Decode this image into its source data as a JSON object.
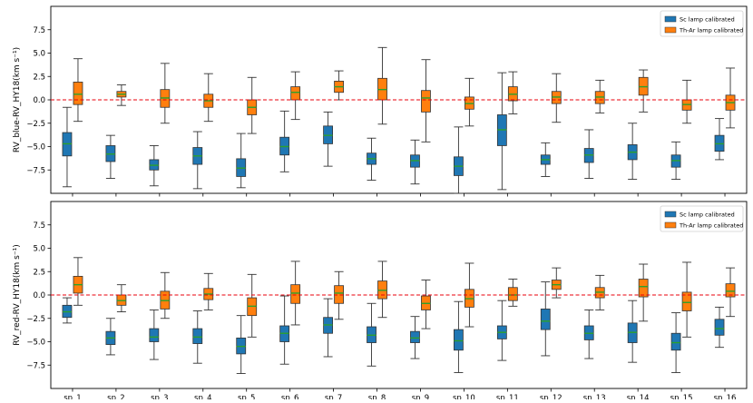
{
  "chart_data": [
    {
      "type": "boxplot",
      "ylabel": "RV_blue-RV_HY18(km s⁻¹)",
      "ylim": [
        -10,
        10
      ],
      "yticks": [
        -7.5,
        -5.0,
        -2.5,
        0.0,
        2.5,
        5.0,
        7.5
      ],
      "ytick_labels": [
        "−7.5",
        "−5.0",
        "−2.5",
        "0.0",
        "2.5",
        "5.0",
        "7.5"
      ],
      "reference_line": 0.0,
      "legend": {
        "placement": "top-right",
        "entries": [
          "Sc lamp calibrated",
          "Th-Ar lamp calibrated"
        ]
      },
      "series": [
        {
          "name": "Sc lamp calibrated",
          "color": "#1f77b4",
          "boxes": [
            {
              "low": -9.3,
              "q1": -6.0,
              "median": -4.7,
              "q3": -3.5,
              "high": -0.8
            },
            {
              "low": -8.4,
              "q1": -6.6,
              "median": -5.8,
              "q3": -4.9,
              "high": -3.8
            },
            {
              "low": -9.2,
              "q1": -7.5,
              "median": -7.0,
              "q3": -6.4,
              "high": -4.9
            },
            {
              "low": -9.5,
              "q1": -6.9,
              "median": -6.0,
              "q3": -5.1,
              "high": -3.4
            },
            {
              "low": -9.4,
              "q1": -8.2,
              "median": -7.3,
              "q3": -6.3,
              "high": -3.6
            },
            {
              "low": -7.7,
              "q1": -5.9,
              "median": -5.0,
              "q3": -4.0,
              "high": -1.2
            },
            {
              "low": -7.1,
              "q1": -4.7,
              "median": -3.8,
              "q3": -2.8,
              "high": -1.3
            },
            {
              "low": -8.6,
              "q1": -6.9,
              "median": -6.3,
              "q3": -5.7,
              "high": -4.1
            },
            {
              "low": -9.0,
              "q1": -7.2,
              "median": -6.5,
              "q3": -5.9,
              "high": -4.3
            },
            {
              "low": -10.0,
              "q1": -8.1,
              "median": -7.1,
              "q3": -6.1,
              "high": -2.9
            },
            {
              "low": -9.6,
              "q1": -4.9,
              "median": -3.2,
              "q3": -1.6,
              "high": 2.9
            },
            {
              "low": -8.2,
              "q1": -6.9,
              "median": -6.4,
              "q3": -5.9,
              "high": -4.6
            },
            {
              "low": -8.4,
              "q1": -6.7,
              "median": -5.9,
              "q3": -5.2,
              "high": -3.2
            },
            {
              "low": -8.5,
              "q1": -6.4,
              "median": -5.6,
              "q3": -4.8,
              "high": -2.5
            },
            {
              "low": -8.5,
              "q1": -7.2,
              "median": -6.5,
              "q3": -5.9,
              "high": -4.5
            },
            {
              "low": -6.4,
              "q1": -5.5,
              "median": -4.7,
              "q3": -3.8,
              "high": -2.0
            }
          ]
        },
        {
          "name": "Th-Ar lamp calibrated",
          "color": "#ff7f0e",
          "boxes": [
            {
              "low": -2.3,
              "q1": -0.5,
              "median": 0.6,
              "q3": 1.9,
              "high": 4.4
            },
            {
              "low": -0.6,
              "q1": 0.3,
              "median": 0.6,
              "q3": 0.9,
              "high": 1.6
            },
            {
              "low": -2.5,
              "q1": -0.8,
              "median": 0.2,
              "q3": 1.1,
              "high": 3.9
            },
            {
              "low": -2.3,
              "q1": -0.8,
              "median": -0.1,
              "q3": 0.6,
              "high": 2.8
            },
            {
              "low": -3.6,
              "q1": -1.6,
              "median": -0.8,
              "q3": 0.0,
              "high": 2.4
            },
            {
              "low": -2.1,
              "q1": 0.0,
              "median": 0.8,
              "q3": 1.4,
              "high": 3.0
            },
            {
              "low": 0.0,
              "q1": 0.8,
              "median": 1.4,
              "q3": 2.0,
              "high": 3.1
            },
            {
              "low": -2.6,
              "q1": 0.0,
              "median": 1.1,
              "q3": 2.3,
              "high": 5.6
            },
            {
              "low": -4.5,
              "q1": -1.3,
              "median": 0.2,
              "q3": 1.0,
              "high": 4.3
            },
            {
              "low": -2.8,
              "q1": -1.0,
              "median": -0.4,
              "q3": 0.3,
              "high": 2.3
            },
            {
              "low": -1.5,
              "q1": -0.1,
              "median": 0.6,
              "q3": 1.4,
              "high": 3.0
            },
            {
              "low": -2.4,
              "q1": -0.4,
              "median": 0.3,
              "q3": 0.9,
              "high": 2.8
            },
            {
              "low": -1.4,
              "q1": -0.4,
              "median": 0.3,
              "q3": 0.9,
              "high": 2.1
            },
            {
              "low": -1.3,
              "q1": 0.5,
              "median": 1.4,
              "q3": 2.4,
              "high": 3.2
            },
            {
              "low": -2.5,
              "q1": -1.1,
              "median": -0.5,
              "q3": 0.0,
              "high": 2.1
            },
            {
              "low": -3.0,
              "q1": -1.1,
              "median": -0.3,
              "q3": 0.5,
              "high": 3.4
            }
          ]
        }
      ]
    },
    {
      "type": "boxplot",
      "ylabel": "RV_red-RV_HY18(km s⁻¹)",
      "ylim": [
        -10,
        10
      ],
      "yticks": [
        -7.5,
        -5.0,
        -2.5,
        0.0,
        2.5,
        5.0,
        7.5
      ],
      "ytick_labels": [
        "−7.5",
        "−5.0",
        "−2.5",
        "0.0",
        "2.5",
        "5.0",
        "7.5"
      ],
      "reference_line": 0.0,
      "legend": {
        "placement": "top-right",
        "entries": [
          "Sc lamp calibrated",
          "Th-Ar lamp calibrated"
        ]
      },
      "categories": [
        "sp_1",
        "sp_2",
        "sp_3",
        "sp_4",
        "sp_5",
        "sp_6",
        "sp_7",
        "sp_8",
        "sp_9",
        "sp_10",
        "sp_11",
        "sp_12",
        "sp_13",
        "sp_14",
        "sp_15",
        "sp_16"
      ],
      "series": [
        {
          "name": "Sc lamp calibrated",
          "color": "#1f77b4",
          "boxes": [
            {
              "low": -3.0,
              "q1": -2.4,
              "median": -1.8,
              "q3": -1.1,
              "high": -0.3
            },
            {
              "low": -6.4,
              "q1": -5.3,
              "median": -4.6,
              "q3": -3.9,
              "high": -2.5
            },
            {
              "low": -6.9,
              "q1": -5.0,
              "median": -4.5,
              "q3": -3.6,
              "high": -1.6
            },
            {
              "low": -7.3,
              "q1": -5.2,
              "median": -4.5,
              "q3": -3.6,
              "high": -1.7
            },
            {
              "low": -8.4,
              "q1": -6.3,
              "median": -5.5,
              "q3": -4.6,
              "high": -2.2
            },
            {
              "low": -7.4,
              "q1": -5.0,
              "median": -4.1,
              "q3": -3.3,
              "high": -0.1
            },
            {
              "low": -6.6,
              "q1": -4.1,
              "median": -3.2,
              "q3": -2.4,
              "high": -0.4
            },
            {
              "low": -7.6,
              "q1": -5.1,
              "median": -4.3,
              "q3": -3.4,
              "high": -0.9
            },
            {
              "low": -6.8,
              "q1": -5.1,
              "median": -4.6,
              "q3": -3.9,
              "high": -2.3
            },
            {
              "low": -8.3,
              "q1": -5.9,
              "median": -4.9,
              "q3": -3.7,
              "high": -0.7
            },
            {
              "low": -7.0,
              "q1": -4.7,
              "median": -4.0,
              "q3": -3.3,
              "high": -0.6
            },
            {
              "low": -6.5,
              "q1": -3.7,
              "median": -2.8,
              "q3": -1.5,
              "high": 1.4
            },
            {
              "low": -6.8,
              "q1": -4.8,
              "median": -4.1,
              "q3": -3.3,
              "high": -1.6
            },
            {
              "low": -7.2,
              "q1": -5.1,
              "median": -4.0,
              "q3": -3.0,
              "high": -0.6
            },
            {
              "low": -8.3,
              "q1": -5.9,
              "median": -5.1,
              "q3": -4.1,
              "high": -1.9
            },
            {
              "low": -5.6,
              "q1": -4.3,
              "median": -3.6,
              "q3": -2.6,
              "high": -1.3
            }
          ]
        },
        {
          "name": "Th-Ar lamp calibrated",
          "color": "#ff7f0e",
          "boxes": [
            {
              "low": -1.1,
              "q1": 0.2,
              "median": 1.1,
              "q3": 2.0,
              "high": 4.0
            },
            {
              "low": -1.8,
              "q1": -1.1,
              "median": -0.6,
              "q3": 0.0,
              "high": 1.1
            },
            {
              "low": -2.5,
              "q1": -1.5,
              "median": -0.6,
              "q3": 0.4,
              "high": 2.4
            },
            {
              "low": -1.6,
              "q1": -0.5,
              "median": 0.1,
              "q3": 0.7,
              "high": 2.3
            },
            {
              "low": -4.5,
              "q1": -2.2,
              "median": -1.2,
              "q3": -0.3,
              "high": 2.2
            },
            {
              "low": -3.2,
              "q1": -0.9,
              "median": 0.2,
              "q3": 1.1,
              "high": 3.6
            },
            {
              "low": -2.6,
              "q1": -0.9,
              "median": 0.2,
              "q3": 1.0,
              "high": 2.5
            },
            {
              "low": -2.4,
              "q1": -0.4,
              "median": 0.5,
              "q3": 1.5,
              "high": 3.6
            },
            {
              "low": -3.6,
              "q1": -1.6,
              "median": -0.9,
              "q3": -0.1,
              "high": 1.6
            },
            {
              "low": -3.4,
              "q1": -1.3,
              "median": -0.4,
              "q3": 0.6,
              "high": 3.4
            },
            {
              "low": -1.2,
              "q1": -0.6,
              "median": 0.0,
              "q3": 0.8,
              "high": 1.7
            },
            {
              "low": -0.3,
              "q1": 0.6,
              "median": 1.1,
              "q3": 1.6,
              "high": 2.9
            },
            {
              "low": -1.6,
              "q1": -0.3,
              "median": 0.3,
              "q3": 0.8,
              "high": 2.1
            },
            {
              "low": -2.8,
              "q1": -0.2,
              "median": 0.9,
              "q3": 1.7,
              "high": 3.3
            },
            {
              "low": -4.5,
              "q1": -1.7,
              "median": -0.8,
              "q3": 0.3,
              "high": 3.5
            },
            {
              "low": -2.3,
              "q1": -0.2,
              "median": 0.4,
              "q3": 1.2,
              "high": 2.9
            }
          ]
        }
      ]
    }
  ]
}
